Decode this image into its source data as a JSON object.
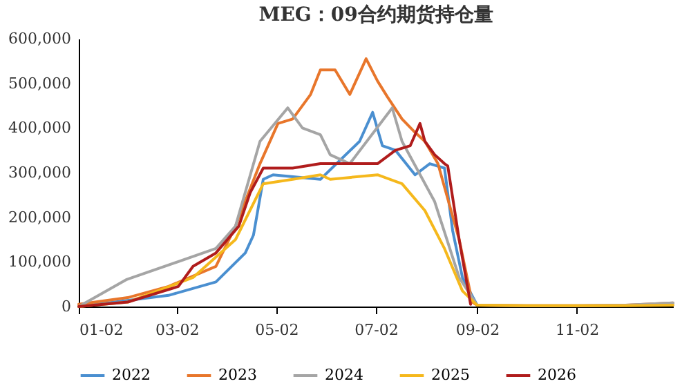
{
  "chart_data": {
    "type": "line",
    "title": "MEG：09合约期货持仓量",
    "xlim": [
      "--01-02",
      "--12-31"
    ],
    "xticks": [
      {
        "value": "--01-02",
        "label": "01-02"
      },
      {
        "value": "--03-02",
        "label": "03-02"
      },
      {
        "value": "--05-02",
        "label": "05-02"
      },
      {
        "value": "--07-02",
        "label": "07-02"
      },
      {
        "value": "--09-02",
        "label": "09-02"
      },
      {
        "value": "--11-02",
        "label": "11-02"
      }
    ],
    "ylim": [
      0,
      600000
    ],
    "yticks": [
      0,
      {
        "value": 100000,
        "label": "100,000"
      },
      {
        "value": 200000,
        "label": "200,000"
      },
      {
        "value": 300000,
        "label": "300,000"
      },
      {
        "value": 400000,
        "label": "400,000"
      },
      {
        "value": 500000,
        "label": "500,000"
      },
      {
        "value": 600000,
        "label": "600,000"
      }
    ],
    "grid": false,
    "legend": "bottom",
    "line_style": "solid",
    "marker": "none",
    "series": [
      {
        "name": "2022",
        "color": "#4a8fd0",
        "x": [
          "--01-02",
          "--02-26",
          "--03-26",
          "--04-13",
          "--04-18",
          "--04-24",
          "--04-30",
          "--05-29",
          "--06-22",
          "--06-30",
          "--07-06",
          "--07-14",
          "--07-26",
          "--08-04",
          "--08-13",
          "--08-18",
          "--08-24",
          "--09-02"
        ],
        "values": [
          0,
          25000,
          55000,
          120000,
          160000,
          285000,
          295000,
          285000,
          370000,
          435000,
          360000,
          350000,
          295000,
          320000,
          310000,
          170000,
          65000,
          3000
        ]
      },
      {
        "name": "2023",
        "color": "#e8762b",
        "x": [
          "--01-02",
          "--02-01",
          "--02-26",
          "--03-26",
          "--04-07",
          "--04-22",
          "--05-03",
          "--05-12",
          "--05-23",
          "--05-29",
          "--06-07",
          "--06-16",
          "--06-26",
          "--07-03",
          "--07-09",
          "--07-18",
          "--07-26",
          "--08-01",
          "--08-09",
          "--08-22",
          "--08-30",
          "--09-02",
          "--10-02",
          "--11-02",
          "--12-02",
          "--12-31"
        ],
        "values": [
          5000,
          20000,
          45000,
          90000,
          180000,
          320000,
          410000,
          420000,
          475000,
          530000,
          530000,
          475000,
          555000,
          505000,
          470000,
          420000,
          390000,
          370000,
          320000,
          150000,
          10000,
          3000,
          2000,
          2000,
          3000,
          8000
        ]
      },
      {
        "name": "2024",
        "color": "#a5a5a5",
        "x": [
          "--01-02",
          "--01-31",
          "--03-26",
          "--04-07",
          "--04-22",
          "--05-09",
          "--05-18",
          "--05-29",
          "--06-04",
          "--06-16",
          "--07-12",
          "--07-18",
          "--08-07",
          "--08-22",
          "--09-02",
          "--10-02",
          "--11-02",
          "--12-02",
          "--12-31"
        ],
        "values": [
          0,
          60000,
          130000,
          180000,
          370000,
          445000,
          400000,
          385000,
          340000,
          320000,
          445000,
          370000,
          235000,
          65000,
          3000,
          2000,
          2000,
          3000,
          8000
        ]
      },
      {
        "name": "2025",
        "color": "#f5b81c",
        "x": [
          "--01-02",
          "--02-01",
          "--03-12",
          "--04-07",
          "--04-24",
          "--05-12",
          "--05-29",
          "--06-04",
          "--07-03",
          "--07-18",
          "--08-01",
          "--08-13",
          "--08-24",
          "--09-02",
          "--10-02",
          "--11-02",
          "--12-02",
          "--12-31"
        ],
        "values": [
          0,
          10000,
          65000,
          150000,
          275000,
          285000,
          295000,
          285000,
          295000,
          275000,
          215000,
          130000,
          35000,
          3000,
          2000,
          2000,
          2000,
          3000
        ]
      },
      {
        "name": "2026",
        "color": "#b01c1c",
        "x": [
          "--01-02",
          "--02-01",
          "--03-03",
          "--03-12",
          "--03-26",
          "--04-09",
          "--04-16",
          "--04-24",
          "--05-12",
          "--05-29",
          "--07-03",
          "--07-14",
          "--07-23",
          "--07-29",
          "--08-01",
          "--08-07",
          "--08-13",
          "--08-15",
          "--08-22",
          "--08-29"
        ],
        "values": [
          0,
          10000,
          45000,
          90000,
          120000,
          180000,
          255000,
          310000,
          310000,
          320000,
          320000,
          350000,
          360000,
          410000,
          370000,
          340000,
          320000,
          315000,
          150000,
          5000
        ]
      }
    ]
  }
}
